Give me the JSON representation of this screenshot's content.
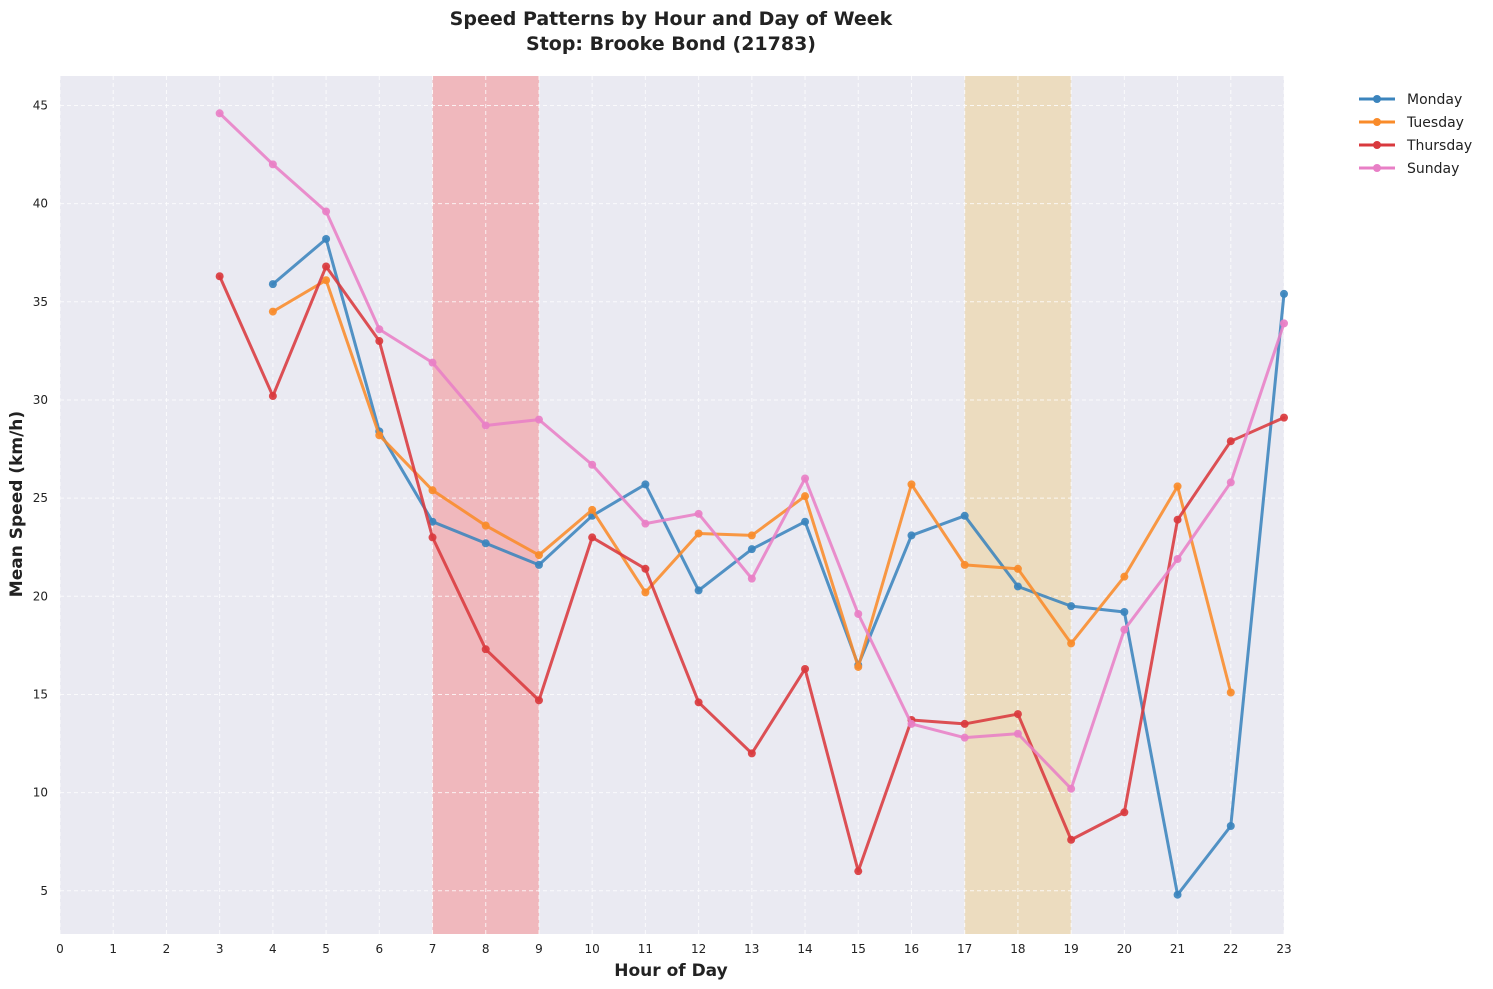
{
  "chart_data": {
    "type": "line",
    "title": "Speed Patterns by Hour and Day of Week",
    "subtitle": "Stop: Brooke Bond (21783)",
    "xlabel": "Hour of Day",
    "ylabel": "Mean Speed (km/h)",
    "xlim": [
      0,
      23
    ],
    "ylim": [
      2.8,
      46.5
    ],
    "xticks": [
      0,
      1,
      2,
      3,
      4,
      5,
      6,
      7,
      8,
      9,
      10,
      11,
      12,
      13,
      14,
      15,
      16,
      17,
      18,
      19,
      20,
      21,
      22,
      23
    ],
    "yticks": [
      5,
      10,
      15,
      20,
      25,
      30,
      35,
      40,
      45
    ],
    "grid": true,
    "legend_position": "outside-top-right",
    "shaded_bands": [
      {
        "from": 7,
        "to": 9,
        "color": "#f0b8bd"
      },
      {
        "from": 17,
        "to": 19,
        "color": "#ecdcbf"
      }
    ],
    "series": [
      {
        "name": "Monday",
        "color": "#3b84bd",
        "x": [
          4,
          5,
          6,
          7,
          8,
          9,
          10,
          11,
          12,
          13,
          14,
          15,
          16,
          17,
          18,
          19,
          20,
          21,
          22,
          23
        ],
        "y": [
          35.9,
          38.2,
          28.4,
          23.8,
          22.7,
          21.6,
          24.1,
          25.7,
          20.3,
          22.4,
          23.8,
          16.5,
          23.1,
          24.1,
          20.5,
          19.5,
          19.2,
          4.8,
          8.3,
          35.4
        ]
      },
      {
        "name": "Tuesday",
        "color": "#f98b2a",
        "x": [
          4,
          5,
          6,
          7,
          8,
          9,
          10,
          11,
          12,
          13,
          14,
          15,
          16,
          17,
          18,
          19,
          20,
          21,
          22
        ],
        "y": [
          34.5,
          36.1,
          28.2,
          25.4,
          23.6,
          22.1,
          24.4,
          20.2,
          23.2,
          23.1,
          25.1,
          16.4,
          25.7,
          21.6,
          21.4,
          17.6,
          21.0,
          25.6,
          15.1
        ]
      },
      {
        "name": "Thursday",
        "color": "#d9393e",
        "x": [
          3,
          4,
          5,
          6,
          7,
          8,
          9,
          10,
          11,
          12,
          13,
          14,
          15,
          16,
          17,
          18,
          19,
          20,
          21,
          22,
          23
        ],
        "y": [
          36.3,
          30.2,
          36.8,
          33.0,
          23.0,
          17.3,
          14.7,
          23.0,
          21.4,
          14.6,
          12.0,
          16.3,
          6.0,
          13.7,
          13.5,
          14.0,
          7.6,
          9.0,
          23.9,
          27.9,
          29.1
        ]
      },
      {
        "name": "Sunday",
        "color": "#e87fc6",
        "x": [
          3,
          4,
          5,
          6,
          7,
          8,
          9,
          10,
          11,
          12,
          13,
          14,
          15,
          16,
          17,
          18,
          19,
          20,
          21,
          22,
          23
        ],
        "y": [
          44.6,
          42.0,
          39.6,
          33.6,
          31.9,
          28.7,
          29.0,
          26.7,
          23.7,
          24.2,
          20.9,
          26.0,
          19.1,
          13.5,
          12.8,
          13.0,
          10.2,
          18.3,
          21.9,
          25.8,
          33.9
        ]
      }
    ]
  },
  "colors": {
    "plot_background": "#eaeaf2",
    "grid": "#ffffff"
  }
}
